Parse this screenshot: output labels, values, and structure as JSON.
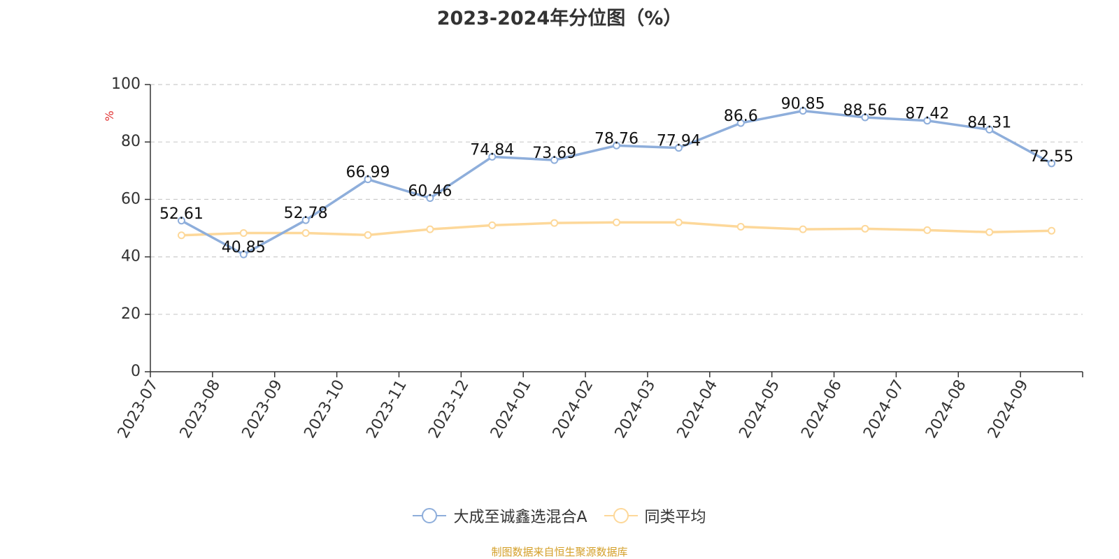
{
  "title": "2023-2024年分位图（%）",
  "footer": "制图数据来自恒生聚源数据库",
  "colors": {
    "fund": "#8eaedb",
    "avg": "#fdd89a",
    "unit": "#e03030",
    "footer": "#d4a02a"
  },
  "chart_data": {
    "type": "line",
    "title": "2023-2024年分位图（%）",
    "ylabel": "%",
    "ylim": [
      0,
      100
    ],
    "yticks": [
      0,
      20,
      40,
      60,
      80,
      100
    ],
    "grid": true,
    "legend_position": "bottom",
    "categories": [
      "2023-07",
      "2023-08",
      "2023-09",
      "2023-10",
      "2023-11",
      "2023-12",
      "2024-01",
      "2024-02",
      "2024-03",
      "2024-04",
      "2024-05",
      "2024-06",
      "2024-07",
      "2024-08",
      "2024-09"
    ],
    "series": [
      {
        "name": "大成至诚鑫选混合A",
        "color": "#8eaedb",
        "show_labels": true,
        "values": [
          52.61,
          40.85,
          52.78,
          66.99,
          60.46,
          74.84,
          73.69,
          78.76,
          77.94,
          86.6,
          90.85,
          88.56,
          87.42,
          84.31,
          72.55
        ]
      },
      {
        "name": "同类平均",
        "color": "#fdd89a",
        "show_labels": false,
        "values": [
          47.5,
          48.3,
          48.3,
          47.6,
          49.6,
          51.0,
          51.8,
          52.0,
          52.0,
          50.5,
          49.6,
          49.8,
          49.3,
          48.6,
          49.1
        ]
      }
    ]
  }
}
